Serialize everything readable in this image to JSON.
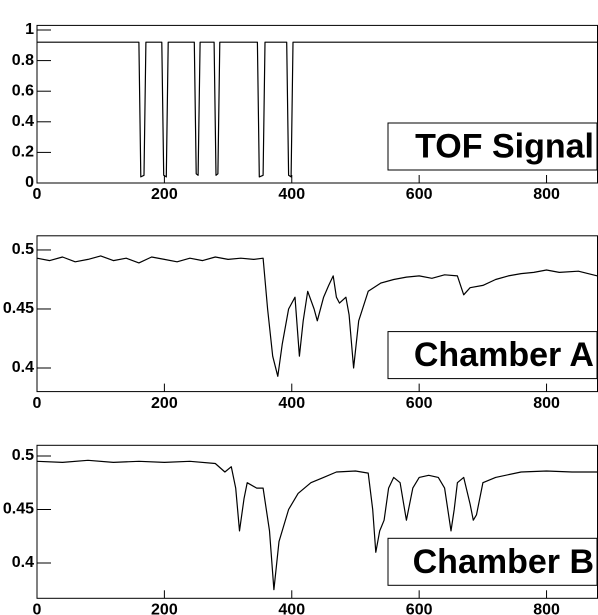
{
  "chart_data": [
    {
      "type": "line",
      "label": "TOF Signal",
      "color": "#000000",
      "xlim": [
        0,
        880
      ],
      "ylim": [
        0,
        1.03
      ],
      "xticks": [
        0,
        200,
        400,
        600,
        800
      ],
      "yticks": [
        0,
        0.2,
        0.4,
        0.6,
        0.8,
        1
      ],
      "x": [
        0,
        160,
        163,
        168,
        171,
        196,
        199,
        203,
        206,
        247,
        250,
        253,
        256,
        278,
        281,
        284,
        287,
        346,
        349,
        355,
        358,
        392,
        395,
        399,
        402,
        880
      ],
      "values": [
        0.92,
        0.92,
        0.04,
        0.05,
        0.92,
        0.92,
        0.05,
        0.04,
        0.92,
        0.92,
        0.06,
        0.05,
        0.92,
        0.92,
        0.05,
        0.06,
        0.92,
        0.92,
        0.04,
        0.05,
        0.92,
        0.92,
        0.05,
        0.04,
        0.92,
        0.92
      ]
    },
    {
      "type": "line",
      "label": "Chamber A",
      "color": "#000000",
      "xlim": [
        0,
        880
      ],
      "ylim": [
        0.38,
        0.512
      ],
      "xticks": [
        0,
        200,
        400,
        600,
        800
      ],
      "yticks": [
        0.4,
        0.45,
        0.5
      ],
      "x": [
        0,
        20,
        40,
        60,
        80,
        100,
        120,
        140,
        160,
        180,
        200,
        220,
        240,
        260,
        280,
        300,
        320,
        340,
        355,
        362,
        370,
        378,
        385,
        395,
        405,
        412,
        418,
        425,
        435,
        440,
        450,
        458,
        465,
        470,
        475,
        485,
        490,
        497,
        505,
        520,
        540,
        560,
        580,
        600,
        620,
        640,
        660,
        670,
        680,
        700,
        720,
        740,
        760,
        780,
        800,
        820,
        850,
        880
      ],
      "values": [
        0.493,
        0.491,
        0.494,
        0.49,
        0.492,
        0.495,
        0.491,
        0.493,
        0.489,
        0.494,
        0.492,
        0.49,
        0.493,
        0.491,
        0.494,
        0.492,
        0.493,
        0.492,
        0.493,
        0.45,
        0.41,
        0.393,
        0.42,
        0.45,
        0.46,
        0.41,
        0.44,
        0.465,
        0.45,
        0.44,
        0.46,
        0.47,
        0.478,
        0.46,
        0.455,
        0.46,
        0.445,
        0.4,
        0.44,
        0.465,
        0.472,
        0.475,
        0.477,
        0.478,
        0.476,
        0.479,
        0.478,
        0.462,
        0.468,
        0.47,
        0.475,
        0.478,
        0.48,
        0.481,
        0.483,
        0.481,
        0.482,
        0.478
      ]
    },
    {
      "type": "line",
      "label": "Chamber B",
      "color": "#000000",
      "xlim": [
        0,
        880
      ],
      "ylim": [
        0.367,
        0.51
      ],
      "xticks": [
        0,
        200,
        400,
        600,
        800
      ],
      "yticks": [
        0.4,
        0.45,
        0.5
      ],
      "x": [
        0,
        40,
        80,
        120,
        160,
        200,
        240,
        280,
        295,
        305,
        312,
        318,
        325,
        330,
        345,
        355,
        365,
        372,
        380,
        395,
        410,
        430,
        450,
        470,
        500,
        520,
        527,
        532,
        538,
        545,
        552,
        560,
        570,
        580,
        590,
        600,
        615,
        630,
        640,
        650,
        655,
        660,
        670,
        680,
        685,
        690,
        700,
        720,
        760,
        800,
        840,
        880
      ],
      "values": [
        0.495,
        0.494,
        0.496,
        0.494,
        0.495,
        0.494,
        0.495,
        0.493,
        0.485,
        0.49,
        0.47,
        0.43,
        0.46,
        0.475,
        0.47,
        0.47,
        0.43,
        0.375,
        0.42,
        0.45,
        0.465,
        0.475,
        0.48,
        0.485,
        0.486,
        0.484,
        0.45,
        0.41,
        0.43,
        0.44,
        0.47,
        0.48,
        0.475,
        0.44,
        0.47,
        0.48,
        0.482,
        0.48,
        0.47,
        0.43,
        0.45,
        0.475,
        0.48,
        0.455,
        0.44,
        0.445,
        0.475,
        0.48,
        0.485,
        0.486,
        0.485,
        0.485
      ]
    }
  ]
}
